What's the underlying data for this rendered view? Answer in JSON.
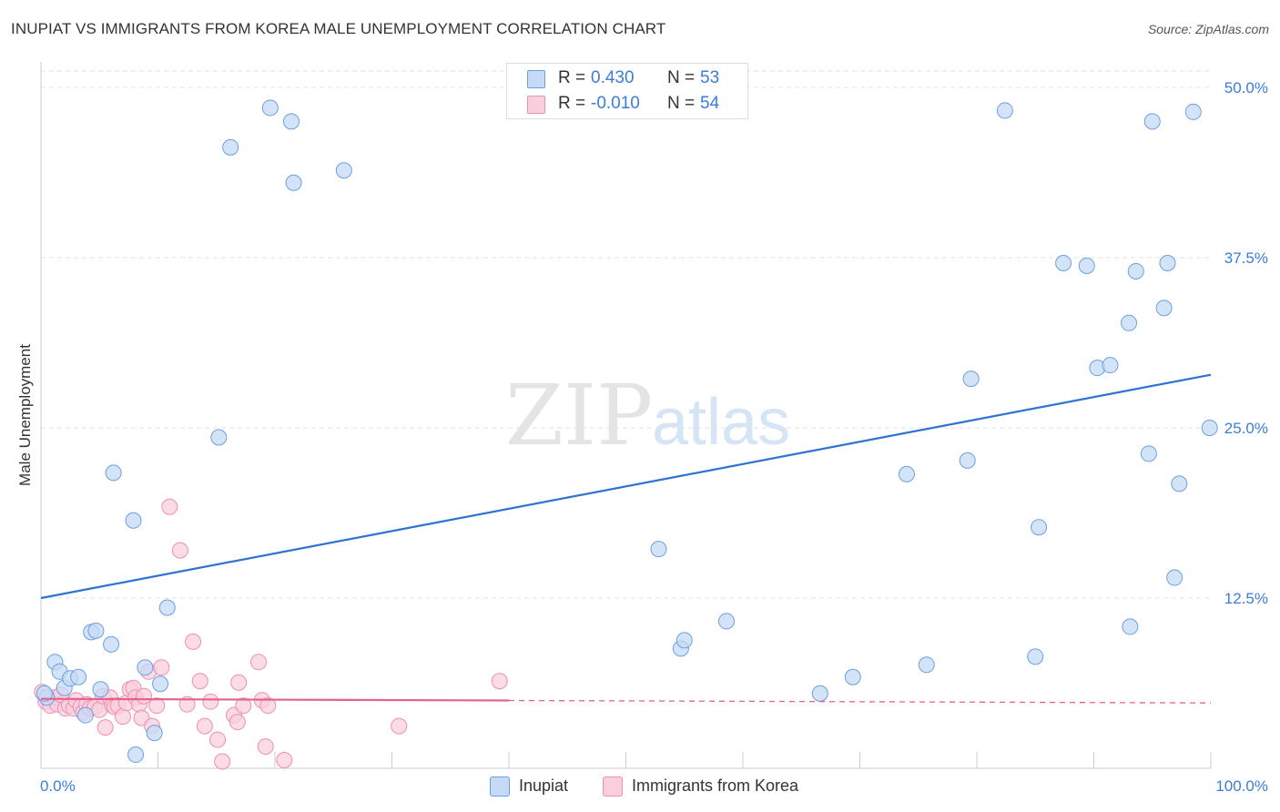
{
  "title": "INUPIAT VS IMMIGRANTS FROM KOREA MALE UNEMPLOYMENT CORRELATION CHART",
  "source": "Source: ZipAtlas.com",
  "watermark": {
    "zip": "ZIP",
    "atlas": "atlas"
  },
  "stats": {
    "r_label": "R =",
    "n_label": "N =",
    "rows": [
      {
        "r": "0.430",
        "n": "53"
      },
      {
        "r": "-0.010",
        "n": "54"
      }
    ]
  },
  "chart_data": {
    "type": "scatter",
    "title": "INUPIAT VS IMMIGRANTS FROM KOREA MALE UNEMPLOYMENT CORRELATION CHART",
    "xlabel": "",
    "ylabel": "Male Unemployment",
    "xlim": [
      0,
      100
    ],
    "ylim": [
      0,
      50
    ],
    "x_tick_labels": [
      "0.0%",
      "100.0%"
    ],
    "y_ticks": [
      {
        "value": 12.5,
        "label": "12.5%"
      },
      {
        "value": 25.0,
        "label": "25.0%"
      },
      {
        "value": 37.5,
        "label": "37.5%"
      },
      {
        "value": 50.0,
        "label": "50.0%"
      }
    ],
    "grid": true,
    "legend_position": "bottom-center",
    "series": [
      {
        "name": "Inupiat",
        "color": "#6aa0e0",
        "fill": "#c5dbf5",
        "trend": {
          "x0": 0,
          "y0": 12.5,
          "x1": 100,
          "y1": 28.9,
          "color": "#2e72d2",
          "dashed_from": null
        },
        "points": [
          [
            0.5,
            5.2
          ],
          [
            1.2,
            7.8
          ],
          [
            1.6,
            7.1
          ],
          [
            2.0,
            5.9
          ],
          [
            2.5,
            6.6
          ],
          [
            3.2,
            6.7
          ],
          [
            3.8,
            3.9
          ],
          [
            4.3,
            10.0
          ],
          [
            4.7,
            10.1
          ],
          [
            5.1,
            5.8
          ],
          [
            6.0,
            9.1
          ],
          [
            6.2,
            21.7
          ],
          [
            7.9,
            18.2
          ],
          [
            8.1,
            1.0
          ],
          [
            8.9,
            7.4
          ],
          [
            9.7,
            2.6
          ],
          [
            10.2,
            6.2
          ],
          [
            10.8,
            11.8
          ],
          [
            16.2,
            45.6
          ],
          [
            15.2,
            24.3
          ],
          [
            19.6,
            48.5
          ],
          [
            21.4,
            47.5
          ],
          [
            21.6,
            43.0
          ],
          [
            25.9,
            43.9
          ],
          [
            52.8,
            16.1
          ],
          [
            54.7,
            8.8
          ],
          [
            55.0,
            9.4
          ],
          [
            58.6,
            10.8
          ],
          [
            66.6,
            5.5
          ],
          [
            69.4,
            6.7
          ],
          [
            74.0,
            21.6
          ],
          [
            75.7,
            7.6
          ],
          [
            79.2,
            22.6
          ],
          [
            79.5,
            28.6
          ],
          [
            82.4,
            48.3
          ],
          [
            85.0,
            8.2
          ],
          [
            85.3,
            17.7
          ],
          [
            87.4,
            37.1
          ],
          [
            89.4,
            36.9
          ],
          [
            90.3,
            29.4
          ],
          [
            91.4,
            29.6
          ],
          [
            93.0,
            32.7
          ],
          [
            93.6,
            36.5
          ],
          [
            93.1,
            10.4
          ],
          [
            94.7,
            23.1
          ],
          [
            95.0,
            47.5
          ],
          [
            96.0,
            33.8
          ],
          [
            96.3,
            37.1
          ],
          [
            96.9,
            14.0
          ],
          [
            97.3,
            20.9
          ],
          [
            98.5,
            48.2
          ],
          [
            99.9,
            25.0
          ],
          [
            0.3,
            5.5
          ]
        ]
      },
      {
        "name": "Immigrants from Korea",
        "color": "#ef8fb0",
        "fill": "#f9cfde",
        "trend": {
          "x0": 0,
          "y0": 5.1,
          "x1": 100,
          "y1": 4.8,
          "color": "#e2638e",
          "dashed_from": 40
        },
        "points": [
          [
            0.1,
            5.6
          ],
          [
            0.4,
            4.9
          ],
          [
            0.8,
            4.6
          ],
          [
            1.1,
            5.2
          ],
          [
            1.4,
            4.7
          ],
          [
            1.7,
            5.4
          ],
          [
            2.1,
            4.4
          ],
          [
            2.4,
            4.6
          ],
          [
            2.8,
            4.4
          ],
          [
            3.0,
            5.0
          ],
          [
            3.4,
            4.5
          ],
          [
            3.6,
            4.1
          ],
          [
            3.9,
            4.7
          ],
          [
            4.2,
            4.4
          ],
          [
            4.6,
            4.5
          ],
          [
            5.0,
            4.3
          ],
          [
            5.3,
            5.3
          ],
          [
            5.5,
            3.0
          ],
          [
            5.9,
            5.2
          ],
          [
            6.1,
            4.6
          ],
          [
            6.3,
            4.5
          ],
          [
            6.6,
            4.6
          ],
          [
            7.0,
            3.8
          ],
          [
            7.3,
            4.8
          ],
          [
            7.6,
            5.8
          ],
          [
            7.9,
            5.9
          ],
          [
            8.1,
            5.2
          ],
          [
            8.4,
            4.7
          ],
          [
            8.6,
            3.7
          ],
          [
            8.8,
            5.3
          ],
          [
            9.2,
            7.1
          ],
          [
            9.5,
            3.1
          ],
          [
            9.9,
            4.6
          ],
          [
            10.3,
            7.4
          ],
          [
            11.0,
            19.2
          ],
          [
            11.9,
            16.0
          ],
          [
            12.5,
            4.7
          ],
          [
            13.0,
            9.3
          ],
          [
            13.6,
            6.4
          ],
          [
            14.0,
            3.1
          ],
          [
            14.5,
            4.9
          ],
          [
            15.1,
            2.1
          ],
          [
            15.5,
            0.5
          ],
          [
            16.5,
            3.9
          ],
          [
            16.8,
            3.4
          ],
          [
            16.9,
            6.3
          ],
          [
            17.3,
            4.6
          ],
          [
            18.6,
            7.8
          ],
          [
            18.9,
            5.0
          ],
          [
            19.2,
            1.6
          ],
          [
            19.4,
            4.6
          ],
          [
            20.8,
            0.6
          ],
          [
            30.6,
            3.1
          ],
          [
            39.2,
            6.4
          ]
        ]
      }
    ]
  }
}
